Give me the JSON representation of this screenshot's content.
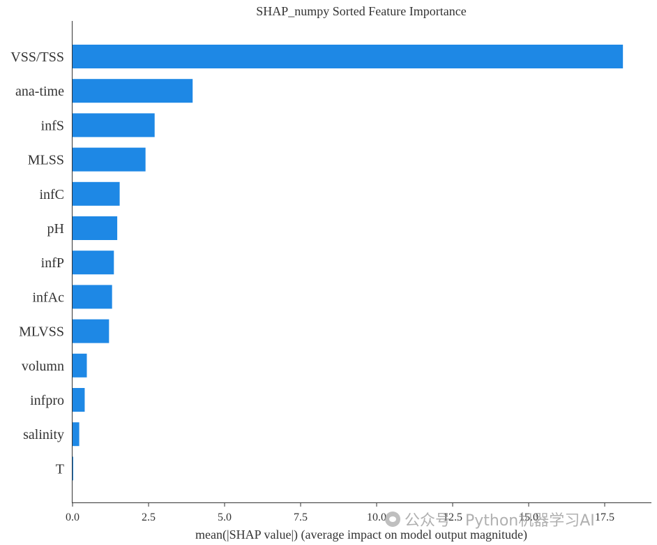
{
  "chart_data": {
    "type": "bar",
    "orientation": "horizontal",
    "title": "SHAP_numpy Sorted Feature Importance",
    "xlabel": "mean(|SHAP value|) (average impact on model output magnitude)",
    "ylabel": "",
    "categories": [
      "VSS/TSS",
      "ana-time",
      "infS",
      "MLSS",
      "infC",
      "pH",
      "infP",
      "infAc",
      "MLVSS",
      "volumn",
      "infpro",
      "salinity",
      "T"
    ],
    "values": [
      18.1,
      3.95,
      2.7,
      2.4,
      1.55,
      1.47,
      1.36,
      1.3,
      1.2,
      0.47,
      0.4,
      0.22,
      0.02
    ],
    "xlim": [
      0,
      19.0
    ],
    "xticks": [
      "0.0",
      "2.5",
      "5.0",
      "7.5",
      "10.0",
      "12.5",
      "15.0",
      "17.5"
    ],
    "xtick_values": [
      0,
      2.5,
      5,
      7.5,
      10,
      12.5,
      15,
      17.5
    ],
    "grid": false,
    "bar_color": "#1E88E5"
  },
  "watermark": {
    "text": "公众号 · Python机器学习AI",
    "icon": "wechat-icon"
  }
}
